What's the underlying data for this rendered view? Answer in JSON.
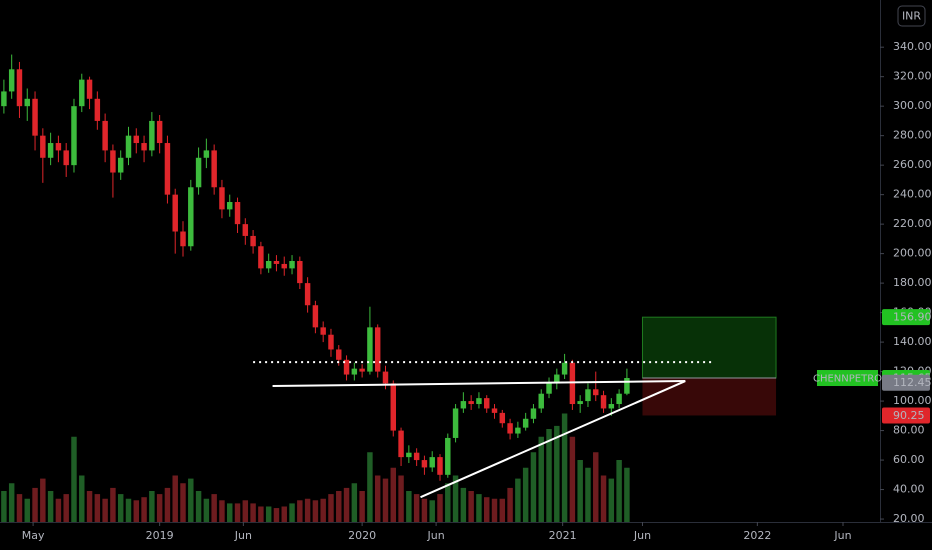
{
  "chart_data": {
    "type": "candlestick",
    "symbol": "CHENNPETRO",
    "currency": "INR",
    "xlim": [
      0,
      226
    ],
    "ylim": [
      18,
      372
    ],
    "grid": false,
    "colors": {
      "up": "#3dbb3d",
      "down": "#e0262b",
      "volume_up": "#1f5e26",
      "volume_down": "#6e1c1f"
    },
    "xticks": [
      {
        "value": 8.5,
        "label": "May"
      },
      {
        "value": 41,
        "label": "2019"
      },
      {
        "value": 62.5,
        "label": "Jun"
      },
      {
        "value": 93,
        "label": "2020"
      },
      {
        "value": 112,
        "label": "Jun"
      },
      {
        "value": 144.5,
        "label": "2021"
      },
      {
        "value": 165,
        "label": "Jun"
      },
      {
        "value": 194.5,
        "label": "2022"
      },
      {
        "value": 216.5,
        "label": "Jun"
      }
    ],
    "yticks": [
      {
        "value": 20,
        "label": "20.00"
      },
      {
        "value": 40,
        "label": "40.00"
      },
      {
        "value": 60,
        "label": "60.00"
      },
      {
        "value": 80,
        "label": "80.00"
      },
      {
        "value": 100,
        "label": "100.00"
      },
      {
        "value": 120,
        "label": "120.00"
      },
      {
        "value": 140,
        "label": "140.00"
      },
      {
        "value": 160,
        "label": "160.00"
      },
      {
        "value": 180,
        "label": "180.00"
      },
      {
        "value": 200,
        "label": "200.00"
      },
      {
        "value": 220,
        "label": "220.00"
      },
      {
        "value": 240,
        "label": "240.00"
      },
      {
        "value": 260,
        "label": "260.00"
      },
      {
        "value": 280,
        "label": "280.00"
      },
      {
        "value": 300,
        "label": "300.00"
      },
      {
        "value": 320,
        "label": "320.00"
      },
      {
        "value": 340,
        "label": "340.00"
      }
    ],
    "open": [
      300,
      310,
      325,
      300,
      305,
      280,
      265,
      275,
      270,
      260,
      300,
      318,
      305,
      290,
      270,
      255,
      265,
      280,
      275,
      270,
      290,
      275,
      240,
      215,
      205,
      245,
      265,
      270,
      245,
      230,
      235,
      220,
      212,
      205,
      190,
      195,
      193,
      190,
      195,
      180,
      165,
      150,
      145,
      135,
      128,
      118,
      122,
      120,
      150,
      120,
      112,
      80,
      62,
      65,
      60,
      55,
      62,
      50,
      75,
      95,
      100,
      98,
      102,
      95,
      92,
      85,
      78,
      82,
      88,
      95,
      105,
      112,
      118,
      126,
      98,
      100,
      108,
      104,
      95,
      98,
      105
    ],
    "high": [
      318,
      335,
      330,
      312,
      310,
      285,
      282,
      280,
      275,
      305,
      322,
      320,
      310,
      295,
      274,
      270,
      286,
      285,
      280,
      296,
      294,
      280,
      244,
      222,
      250,
      272,
      278,
      274,
      250,
      240,
      238,
      224,
      216,
      208,
      200,
      199,
      198,
      199,
      198,
      184,
      168,
      154,
      149,
      138,
      131,
      126,
      125,
      164,
      152,
      124,
      114,
      82,
      70,
      68,
      63,
      66,
      64,
      78,
      98,
      106,
      104,
      106,
      104,
      98,
      94,
      88,
      86,
      92,
      98,
      108,
      116,
      122,
      132,
      128,
      104,
      112,
      120,
      107,
      102,
      108,
      122
    ],
    "low": [
      295,
      305,
      292,
      290,
      270,
      248,
      260,
      262,
      252,
      255,
      296,
      298,
      284,
      262,
      238,
      250,
      260,
      268,
      262,
      266,
      268,
      234,
      200,
      198,
      202,
      240,
      258,
      240,
      224,
      225,
      214,
      206,
      200,
      186,
      187,
      188,
      185,
      186,
      176,
      160,
      146,
      140,
      130,
      124,
      114,
      114,
      116,
      118,
      116,
      108,
      76,
      56,
      58,
      56,
      50,
      52,
      46,
      48,
      72,
      92,
      94,
      95,
      92,
      88,
      82,
      74,
      75,
      80,
      85,
      92,
      102,
      108,
      115,
      94,
      92,
      96,
      100,
      92,
      90,
      95,
      104
    ],
    "close": [
      310,
      325,
      300,
      305,
      280,
      265,
      275,
      270,
      260,
      300,
      318,
      305,
      290,
      270,
      255,
      265,
      280,
      275,
      270,
      290,
      275,
      240,
      215,
      205,
      245,
      265,
      270,
      245,
      230,
      235,
      220,
      212,
      205,
      190,
      195,
      193,
      190,
      195,
      180,
      165,
      150,
      145,
      135,
      128,
      118,
      122,
      120,
      150,
      120,
      112,
      80,
      62,
      65,
      60,
      55,
      62,
      50,
      75,
      95,
      100,
      98,
      102,
      95,
      92,
      85,
      78,
      82,
      88,
      95,
      105,
      112,
      118,
      126,
      98,
      100,
      108,
      104,
      95,
      98,
      105,
      115.65
    ],
    "volume": [
      20,
      25,
      18,
      15,
      22,
      28,
      20,
      15,
      18,
      55,
      30,
      20,
      18,
      15,
      22,
      18,
      15,
      14,
      16,
      20,
      18,
      22,
      30,
      25,
      28,
      20,
      15,
      18,
      14,
      12,
      12,
      14,
      12,
      10,
      10,
      9,
      10,
      12,
      14,
      15,
      14,
      15,
      18,
      20,
      22,
      25,
      20,
      45,
      30,
      28,
      35,
      30,
      20,
      18,
      15,
      14,
      18,
      25,
      30,
      22,
      20,
      18,
      16,
      15,
      15,
      22,
      28,
      35,
      45,
      55,
      60,
      62,
      70,
      55,
      40,
      35,
      45,
      30,
      28,
      40,
      35
    ],
    "lines": [
      {
        "style": "dotted",
        "x": [
          65,
          183.6
        ],
        "y": [
          126.4,
          126.4
        ]
      },
      {
        "style": "solid",
        "x": [
          70,
          176
        ],
        "y": [
          110.2,
          113.6
        ]
      },
      {
        "style": "solid",
        "x": [
          108,
          176
        ],
        "y": [
          34.8,
          113.6
        ]
      }
    ],
    "position": {
      "x": [
        165,
        199.3
      ],
      "entry": 115.65,
      "target": 156.9,
      "stop": 90.25
    },
    "price_labels": [
      {
        "value": 156.9,
        "label": "156.90",
        "color": "#22c222",
        "text_color": "#000"
      },
      {
        "value": 115.65,
        "label": "115.65",
        "color": "#22c222",
        "text_color": "#000"
      },
      {
        "value": 112.45,
        "label": "112.45",
        "color": "#787b86",
        "text_color": "#fff"
      },
      {
        "value": 90.25,
        "label": "90.25",
        "color": "#e0262b",
        "text_color": "#fff"
      }
    ]
  }
}
